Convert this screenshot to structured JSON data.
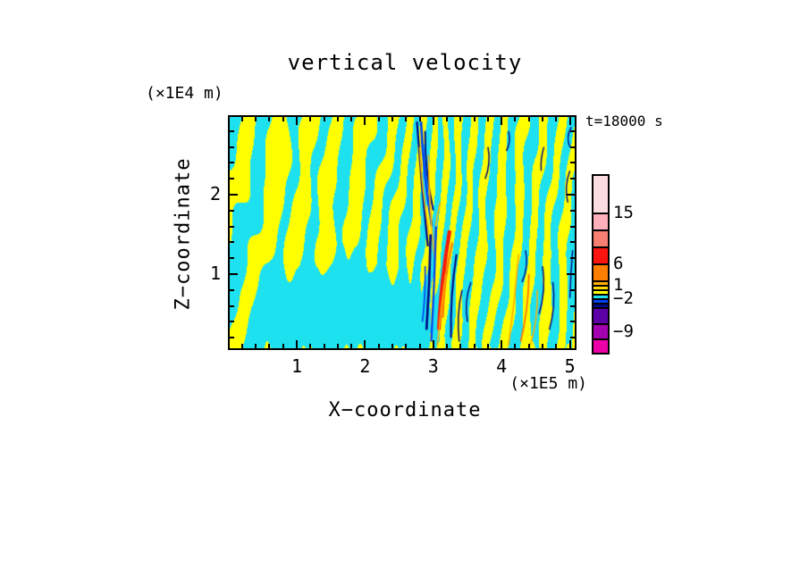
{
  "title": "vertical velocity",
  "annotation": {
    "time_label": "t=18000 s"
  },
  "axes": {
    "x": {
      "title": "X−coordinate",
      "unit_label": "(×1E5 m)",
      "major_ticks": [
        "1",
        "2",
        "3",
        "4",
        "5"
      ],
      "major_tick_values": [
        1,
        2,
        3,
        4,
        5
      ],
      "minor_tick_step": 0.2,
      "range": [
        0,
        5.07
      ]
    },
    "z": {
      "title": "Z−coordinate",
      "unit_label": "(×1E4 m)",
      "major_ticks": [
        "1",
        "2"
      ],
      "major_tick_values": [
        1,
        2
      ],
      "minor_tick_step": 0.2,
      "range": [
        0.06,
        2.98
      ]
    }
  },
  "colorbar": {
    "segments_top_to_bottom": [
      {
        "color": "#fbdce0",
        "h": 41,
        "label": "15"
      },
      {
        "color": "#ffafbb",
        "h": 19,
        "label": null
      },
      {
        "color": "#f97f72",
        "h": 19,
        "label": null
      },
      {
        "color": "#fb1410",
        "h": 19,
        "label": "6"
      },
      {
        "color": "#ff7d00",
        "h": 19,
        "label": null
      },
      {
        "color": "#ffaf00",
        "h": 5,
        "label": "1"
      },
      {
        "color": "#ffd800",
        "h": 5,
        "label": null
      },
      {
        "color": "#ffff00",
        "h": 5,
        "label": null
      },
      {
        "color": "#1ee1f0",
        "h": 5,
        "label": "−2"
      },
      {
        "color": "#0042f5",
        "h": 5,
        "label": null
      },
      {
        "color": "#000a85",
        "h": 5,
        "label": null
      },
      {
        "color": "#5e00a8",
        "h": 18,
        "label": "−9"
      },
      {
        "color": "#a300af",
        "h": 17,
        "label": null
      },
      {
        "color": "#ec00a8",
        "h": 16,
        "label": null
      }
    ]
  },
  "chart_data": {
    "type": "heatmap",
    "title": "vertical velocity",
    "xlabel": "X−coordinate",
    "x_unit": "(×1E5 m)",
    "ylabel": "Z−coordinate",
    "y_unit": "(×1E4 m)",
    "x_range": [
      0,
      5.07
    ],
    "y_range": [
      0,
      2.98
    ],
    "x_major_ticks": [
      1,
      2,
      3,
      4,
      5
    ],
    "y_major_ticks": [
      1,
      2
    ],
    "minor_tick_step": 0.2,
    "annotation": "t=18000 s",
    "legend_position": "right-colorbar",
    "colorbar_tick_values": [
      15,
      6,
      1,
      -2,
      -9
    ],
    "field_colors": {
      "positive_weak": "#ffff00",
      "negative_weak": "#1ee1f0",
      "strong_positive": [
        "#ffaf00",
        "#ff7d00",
        "#fb1410"
      ],
      "strong_negative": [
        "#0042f5",
        "#000a85",
        "#5e00a8",
        "#a300af",
        "#ec00a8"
      ]
    },
    "field_description": "Filled-contour vertical velocity field: interleaved yellow (weak positive) and cyan (weak negative) gravity-wave stripes; broad cyan pool in the lower left; dense fine-scale vertical striations near x≈3×1E5 m containing strong downdraft streaks (blue/navy) aloft and a strong updraft streak (red/orange/gold) below; slanted yellow/cyan bands with scattered gold/orange and navy streaks across the right half; spiky yellow fringe along the bottom boundary.",
    "pattern": {
      "stripe_base_freq": 1.7,
      "stripe_freq_slope": 0.5,
      "dense_zone_center": 3.05,
      "dense_zone_width": 0.5,
      "dense_zone_extra_freq": 2.6,
      "stripe_slant": -2.6,
      "pool": {
        "cx": 1.7,
        "cz": 0.3,
        "rx": 1.5,
        "rz": 1.0
      },
      "streaks": [
        {
          "u1": 2.76,
          "v1": 2.92,
          "u0": 2.92,
          "v0": 1.35,
          "w": 0.03,
          "c": "navy"
        },
        {
          "u1": 2.82,
          "v1": 2.92,
          "u0": 2.98,
          "v0": 1.6,
          "w": 0.035,
          "c": "blue"
        },
        {
          "u1": 2.88,
          "v1": 2.8,
          "u0": 3.0,
          "v0": 1.8,
          "w": 0.025,
          "c": "navy"
        },
        {
          "u1": 2.8,
          "v1": 2.6,
          "u0": 2.94,
          "v0": 1.5,
          "w": 0.018,
          "c": "gold"
        },
        {
          "u1": 2.93,
          "v1": 2.5,
          "u0": 3.02,
          "v0": 1.2,
          "w": 0.02,
          "c": "gold"
        },
        {
          "u1": 3.1,
          "v1": 1.9,
          "u0": 3.03,
          "v0": 1.2,
          "w": 0.02,
          "c": "gold"
        },
        {
          "u1": 2.96,
          "v1": 1.5,
          "u0": 2.9,
          "v0": 0.3,
          "w": 0.035,
          "c": "navy"
        },
        {
          "u1": 3.04,
          "v1": 1.6,
          "u0": 2.97,
          "v0": 0.15,
          "w": 0.03,
          "c": "blue"
        },
        {
          "u1": 2.88,
          "v1": 1.1,
          "u0": 2.84,
          "v0": 0.4,
          "w": 0.022,
          "c": "blue"
        },
        {
          "u1": 3.24,
          "v1": 1.55,
          "u0": 3.08,
          "v0": 0.3,
          "w": 0.055,
          "c": "red"
        },
        {
          "u1": 3.28,
          "v1": 1.4,
          "u0": 3.14,
          "v0": 0.45,
          "w": 0.03,
          "c": "orange"
        },
        {
          "u1": 3.18,
          "v1": 1.0,
          "u0": 3.06,
          "v0": 0.1,
          "w": 0.02,
          "c": "gold"
        },
        {
          "u1": 3.34,
          "v1": 1.25,
          "u0": 3.26,
          "v0": 0.2,
          "w": 0.028,
          "c": "navy"
        },
        {
          "u1": 3.42,
          "v1": 0.8,
          "u0": 3.38,
          "v0": 0.15,
          "w": 0.02,
          "c": "navy"
        },
        {
          "u1": 3.55,
          "v1": 0.9,
          "u0": 3.5,
          "v0": 0.4,
          "w": 0.018,
          "c": "navy"
        },
        {
          "u1": 3.8,
          "v1": 2.6,
          "u0": 3.76,
          "v0": 2.2,
          "w": 0.016,
          "c": "navy"
        },
        {
          "u1": 4.1,
          "v1": 2.8,
          "u0": 4.07,
          "v0": 2.55,
          "w": 0.014,
          "c": "navy"
        },
        {
          "u1": 4.25,
          "v1": 1.25,
          "u0": 4.1,
          "v0": 0.1,
          "w": 0.022,
          "c": "gold"
        },
        {
          "u1": 4.4,
          "v1": 1.0,
          "u0": 4.28,
          "v0": 0.15,
          "w": 0.025,
          "c": "orange"
        },
        {
          "u1": 4.52,
          "v1": 0.8,
          "u0": 4.42,
          "v0": 0.1,
          "w": 0.018,
          "c": "gold"
        },
        {
          "u1": 4.35,
          "v1": 1.3,
          "u0": 4.3,
          "v0": 0.9,
          "w": 0.018,
          "c": "navy"
        },
        {
          "u1": 4.6,
          "v1": 1.1,
          "u0": 4.55,
          "v0": 0.5,
          "w": 0.02,
          "c": "navy"
        },
        {
          "u1": 4.75,
          "v1": 0.9,
          "u0": 4.7,
          "v0": 0.3,
          "w": 0.018,
          "c": "navy"
        },
        {
          "u1": 4.62,
          "v1": 2.6,
          "u0": 4.58,
          "v0": 2.3,
          "w": 0.014,
          "c": "navy"
        },
        {
          "u1": 5.0,
          "v1": 2.3,
          "u0": 4.97,
          "v0": 1.9,
          "w": 0.016,
          "c": "navy"
        },
        {
          "u1": 5.04,
          "v1": 1.3,
          "u0": 5.0,
          "v0": 0.7,
          "w": 0.018,
          "c": "navy"
        },
        {
          "u1": 5.02,
          "v1": 2.85,
          "u0": 5.0,
          "v0": 2.6,
          "w": 0.014,
          "c": "navy"
        }
      ],
      "streak_palette": {
        "navy": "#000a85",
        "blue": "#0042f5",
        "red": "#fb1c07",
        "orange": "#ff7d00",
        "gold": "#ffaf00",
        "indigo": "#5e00a8"
      }
    }
  }
}
